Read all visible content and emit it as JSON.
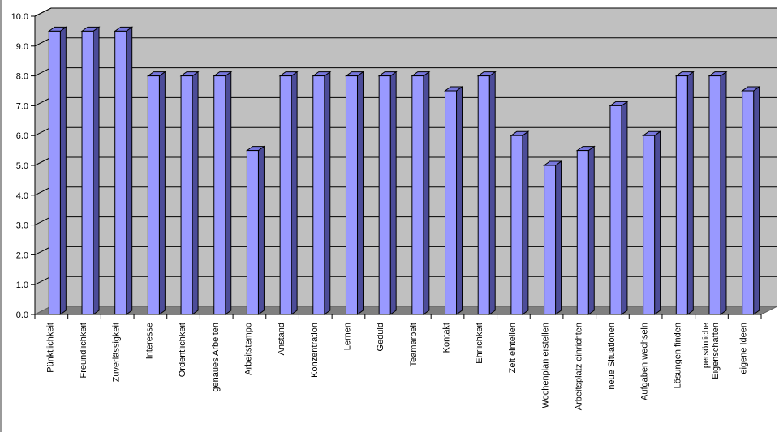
{
  "chart_data": {
    "type": "bar",
    "title": "",
    "xlabel": "",
    "ylabel": "",
    "ylim": [
      0,
      10
    ],
    "yticks": [
      "0.0",
      "1.0",
      "2.0",
      "3.0",
      "4.0",
      "5.0",
      "6.0",
      "7.0",
      "8.0",
      "9.0",
      "10.0"
    ],
    "grid": true,
    "legend": "none",
    "style": "3d",
    "colors": {
      "bar_front": "#9999ff",
      "bar_side": "#4c4c99",
      "bar_top": "#7777dd",
      "wall": "#c0c0c0",
      "floor": "#7f7f7f",
      "gridline": "#000000"
    },
    "categories": [
      [
        "Pünktlichkeit"
      ],
      [
        "Freundlichkeit"
      ],
      [
        "Zuverlässigkeit"
      ],
      [
        "Interesse"
      ],
      [
        "Ordentlichkeit"
      ],
      [
        "genaues Arbeiten"
      ],
      [
        "Arbeitstempo"
      ],
      [
        "Anstand"
      ],
      [
        "Konzentration"
      ],
      [
        "Lernen"
      ],
      [
        "Geduld"
      ],
      [
        "Teamarbeit"
      ],
      [
        "Kontakt"
      ],
      [
        "Ehrlichkeit"
      ],
      [
        "Zeit einteilen"
      ],
      [
        "Wochenplan erstellen"
      ],
      [
        "Arbeitsplatz einrichten"
      ],
      [
        "neue Situationen"
      ],
      [
        "Aufgaben wechseln"
      ],
      [
        "Lösungen finden"
      ],
      [
        "persönliche",
        "Eigenschaften"
      ],
      [
        "eigene Ideen"
      ]
    ],
    "values": [
      9.5,
      9.5,
      9.5,
      8.0,
      8.0,
      8.0,
      5.5,
      8.0,
      8.0,
      8.0,
      8.0,
      8.0,
      7.5,
      8.0,
      6.0,
      5.0,
      5.5,
      7.0,
      6.0,
      8.0,
      8.0,
      7.5
    ]
  }
}
